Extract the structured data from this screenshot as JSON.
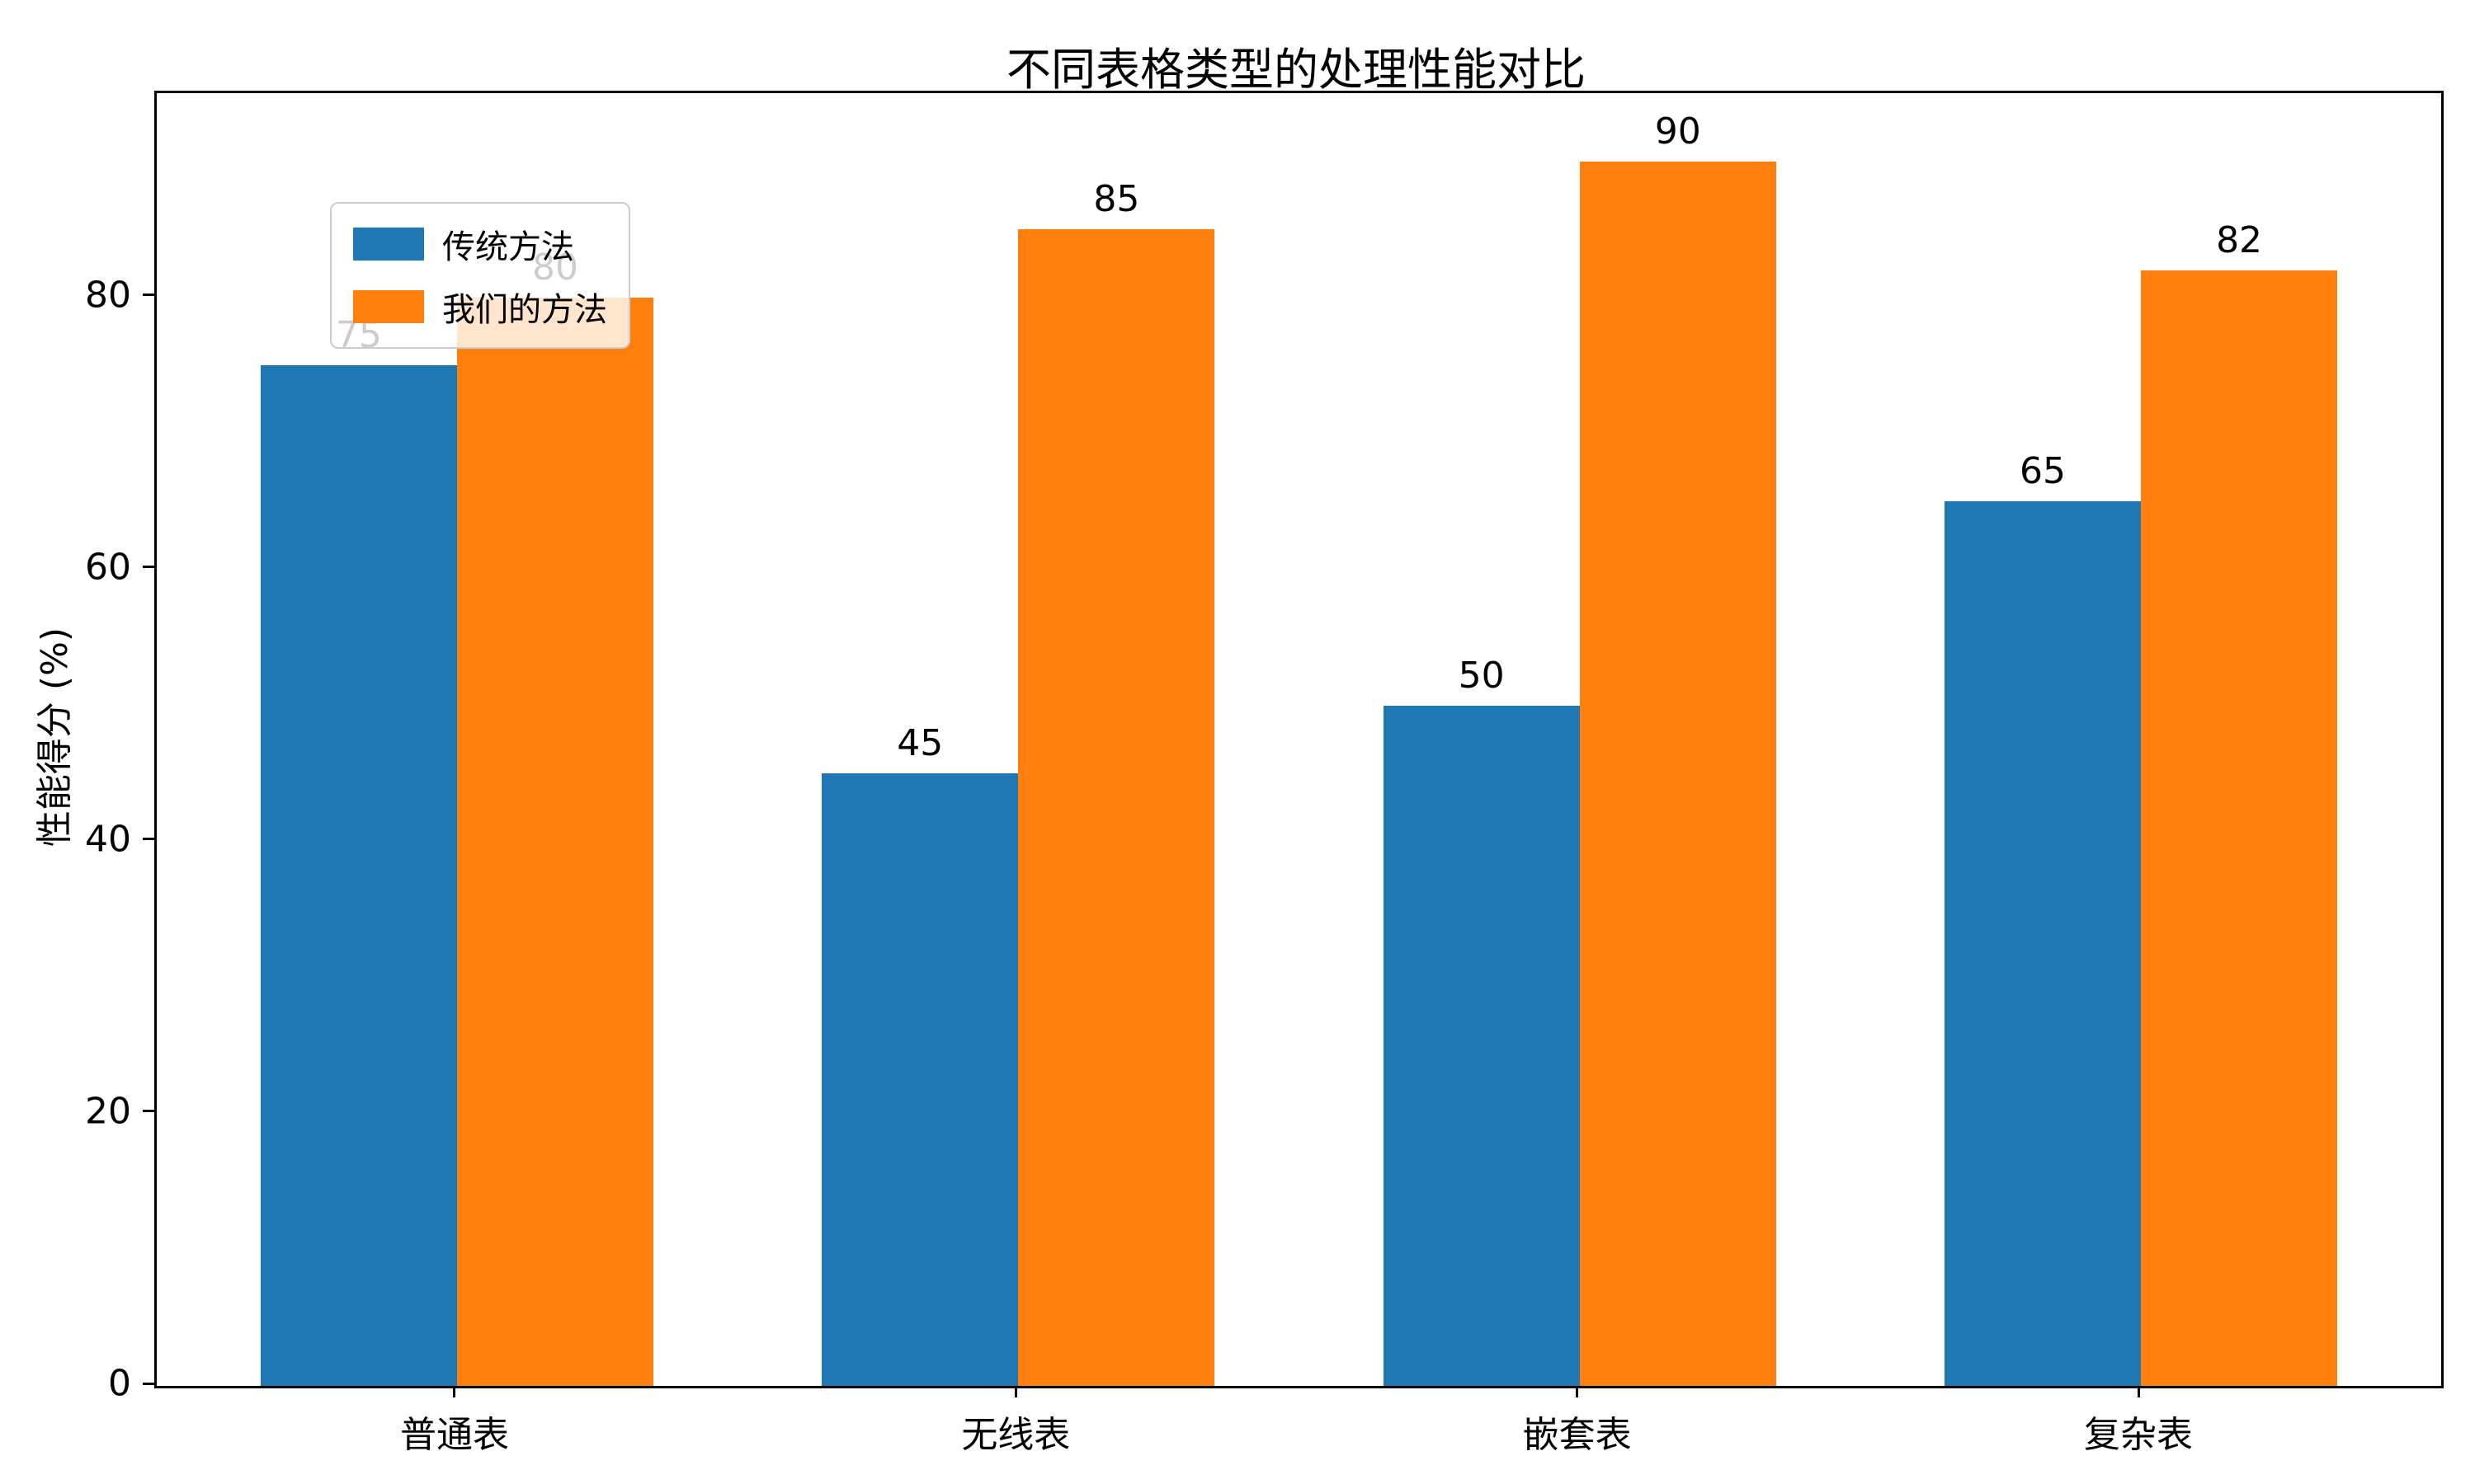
{
  "chart_data": {
    "type": "bar",
    "title": "不同表格类型的处理性能对比",
    "xlabel": "",
    "ylabel": "性能得分 (%)",
    "categories": [
      "普通表",
      "无线表",
      "嵌套表",
      "复杂表"
    ],
    "series": [
      {
        "name": "传统方法",
        "color": "#1f77b4",
        "values": [
          75,
          45,
          50,
          65
        ]
      },
      {
        "name": "我们的方法",
        "color": "#ff7f0e",
        "values": [
          80,
          85,
          90,
          82
        ]
      }
    ],
    "yticks": [
      0,
      20,
      40,
      60,
      80
    ],
    "ylim": [
      0,
      95
    ],
    "bar_value_labels": [
      [
        75,
        45,
        50,
        65
      ],
      [
        80,
        85,
        90,
        82
      ]
    ],
    "legend_position": "upper-left",
    "grid": false,
    "background_color": "#ffffff",
    "text_color": "#000000"
  }
}
